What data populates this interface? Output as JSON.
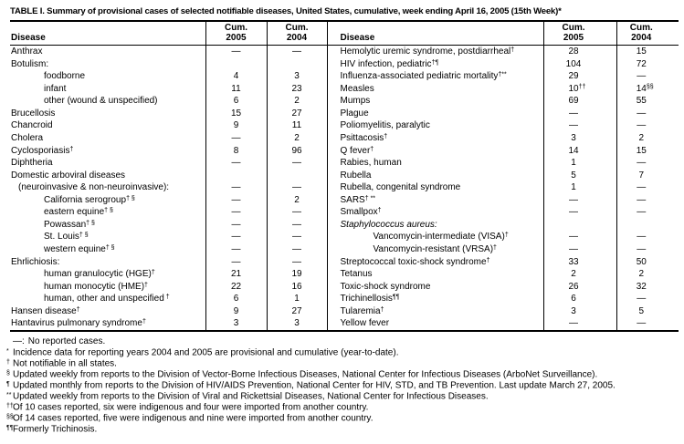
{
  "title": "TABLE I. Summary of provisional cases of selected notifiable diseases, United States, cumulative, week ending April 16, 2005 (15th Week)*",
  "header": {
    "disease_label": "Disease",
    "cum_label": "Cum.",
    "year_2005": "2005",
    "year_2004": "2004"
  },
  "table": {
    "left_rows": [
      {
        "d": "Anthrax",
        "i": 0,
        "v05": "—",
        "v04": "—"
      },
      {
        "d": "Botulism:",
        "i": 0,
        "v05": "",
        "v04": ""
      },
      {
        "d": "foodborne",
        "i": 2,
        "v05": "4",
        "v04": "3"
      },
      {
        "d": "infant",
        "i": 2,
        "v05": "11",
        "v04": "23"
      },
      {
        "d": "other (wound & unspecified)",
        "i": 2,
        "v05": "6",
        "v04": "2"
      },
      {
        "d": "Brucellosis",
        "i": 0,
        "v05": "15",
        "v04": "27"
      },
      {
        "d": "Chancroid",
        "i": 0,
        "v05": "9",
        "v04": "11"
      },
      {
        "d": "Cholera",
        "i": 0,
        "v05": "—",
        "v04": "2"
      },
      {
        "d": "Cyclosporiasis",
        "ds": "†",
        "i": 0,
        "v05": "8",
        "v04": "96"
      },
      {
        "d": "Diphtheria",
        "i": 0,
        "v05": "—",
        "v04": "—"
      },
      {
        "d": "Domestic arboviral diseases",
        "i": 0,
        "v05": "",
        "v04": ""
      },
      {
        "d": "(neuroinvasive & non-neuroinvasive):",
        "i": 1,
        "v05": "—",
        "v04": "—"
      },
      {
        "d": "California serogroup",
        "ds": "† §",
        "i": 2,
        "v05": "—",
        "v04": "2"
      },
      {
        "d": "eastern equine",
        "ds": "† §",
        "i": 2,
        "v05": "—",
        "v04": "—"
      },
      {
        "d": "Powassan",
        "ds": "† §",
        "i": 2,
        "v05": "—",
        "v04": "—"
      },
      {
        "d": "St. Louis",
        "ds": "† §",
        "i": 2,
        "v05": "—",
        "v04": "—"
      },
      {
        "d": "western equine",
        "ds": "† §",
        "i": 2,
        "v05": "—",
        "v04": "—"
      },
      {
        "d": "Ehrlichiosis:",
        "i": 0,
        "v05": "—",
        "v04": "—"
      },
      {
        "d": "human granulocytic (HGE)",
        "ds": "†",
        "i": 2,
        "v05": "21",
        "v04": "19"
      },
      {
        "d": "human monocytic (HME)",
        "ds": "†",
        "i": 2,
        "v05": "22",
        "v04": "16"
      },
      {
        "d": "human, other and unspecified",
        "ds": " †",
        "i": 2,
        "v05": "6",
        "v04": "1"
      },
      {
        "d": "Hansen disease",
        "ds": "†",
        "i": 0,
        "v05": "9",
        "v04": "27"
      },
      {
        "d": "Hantavirus pulmonary syndrome",
        "ds": "†",
        "i": 0,
        "v05": "3",
        "v04": "3"
      }
    ],
    "right_rows": [
      {
        "d": "Hemolytic uremic syndrome, postdiarrheal",
        "ds": "†",
        "i": 0,
        "v05": "28",
        "v04": "15"
      },
      {
        "d": "HIV infection, pediatric",
        "ds": "†¶",
        "i": 0,
        "v05": "104",
        "v04": "72"
      },
      {
        "d": "Influenza-associated pediatric mortality",
        "ds": "†**",
        "i": 0,
        "v05": "29",
        "v04": "—"
      },
      {
        "d": "Measles",
        "i": 0,
        "v05": "10",
        "s05": "††",
        "v04": "14",
        "s04": "§§"
      },
      {
        "d": "Mumps",
        "i": 0,
        "v05": "69",
        "v04": "55"
      },
      {
        "d": "Plague",
        "i": 0,
        "v05": "—",
        "v04": "—"
      },
      {
        "d": "Poliomyelitis, paralytic",
        "i": 0,
        "v05": "—",
        "v04": "—"
      },
      {
        "d": "Psittacosis",
        "ds": "†",
        "i": 0,
        "v05": "3",
        "v04": "2"
      },
      {
        "d": "Q fever",
        "ds": "†",
        "i": 0,
        "v05": "14",
        "v04": "15"
      },
      {
        "d": "Rabies, human",
        "i": 0,
        "v05": "1",
        "v04": "—"
      },
      {
        "d": "Rubella",
        "i": 0,
        "v05": "5",
        "v04": "7"
      },
      {
        "d": "Rubella, congenital syndrome",
        "i": 0,
        "v05": "1",
        "v04": "—"
      },
      {
        "d": "SARS",
        "ds": "† **",
        "i": 0,
        "v05": "—",
        "v04": "—"
      },
      {
        "d": "Smallpox",
        "ds": "†",
        "i": 0,
        "v05": "—",
        "v04": "—"
      },
      {
        "d": "Staphylococcus aureus:",
        "it": true,
        "i": 0,
        "v05": "",
        "v04": ""
      },
      {
        "d": "Vancomycin-intermediate (VISA)",
        "ds": "†",
        "i": 2,
        "v05": "—",
        "v04": "—"
      },
      {
        "d": "Vancomycin-resistant (VRSA)",
        "ds": "†",
        "i": 2,
        "v05": "—",
        "v04": "—"
      },
      {
        "d": "Streptococcal toxic-shock syndrome",
        "ds": "†",
        "i": 0,
        "v05": "33",
        "v04": "50"
      },
      {
        "d": "Tetanus",
        "i": 0,
        "v05": "2",
        "v04": "2"
      },
      {
        "d": "Toxic-shock syndrome",
        "i": 0,
        "v05": "26",
        "v04": "32"
      },
      {
        "d": "Trichinellosis",
        "ds": "¶¶",
        "i": 0,
        "v05": "6",
        "v04": "—"
      },
      {
        "d": "Tularemia",
        "ds": "†",
        "i": 0,
        "v05": "3",
        "v04": "5"
      },
      {
        "d": "Yellow fever",
        "i": 0,
        "v05": "—",
        "v04": "—"
      }
    ]
  },
  "footnotes": {
    "items": [
      {
        "marker": "—:",
        "sup": false,
        "text": "No reported cases."
      },
      {
        "marker": "*",
        "sup": true,
        "text": "Incidence data for reporting years 2004 and 2005 are provisional and cumulative (year-to-date)."
      },
      {
        "marker": "†",
        "sup": true,
        "text": "Not notifiable in all states."
      },
      {
        "marker": "§",
        "sup": true,
        "text": "Updated weekly from reports to the Division of Vector-Borne Infectious Diseases, National Center for Infectious Diseases (ArboNet Surveillance)."
      },
      {
        "marker": "¶",
        "sup": true,
        "text": "Updated monthly from reports to the Division of HIV/AIDS Prevention, National Center for HIV, STD, and TB Prevention. Last update March 27, 2005."
      },
      {
        "marker": "**",
        "sup": true,
        "text": "Updated weekly from reports to the Division of Viral and Rickettsial Diseases, National Center for Infectious Diseases."
      },
      {
        "marker": "††",
        "sup": true,
        "text": "Of 10 cases reported, six were indigenous and four were imported from another country."
      },
      {
        "marker": "§§",
        "sup": true,
        "text": "Of 14 cases reported, five were indigenous and nine were imported from another country."
      },
      {
        "marker": "¶¶",
        "sup": true,
        "text": "Formerly Trichinosis."
      }
    ]
  },
  "colors": {
    "text": "#000000",
    "background": "#ffffff",
    "rule": "#000000"
  }
}
